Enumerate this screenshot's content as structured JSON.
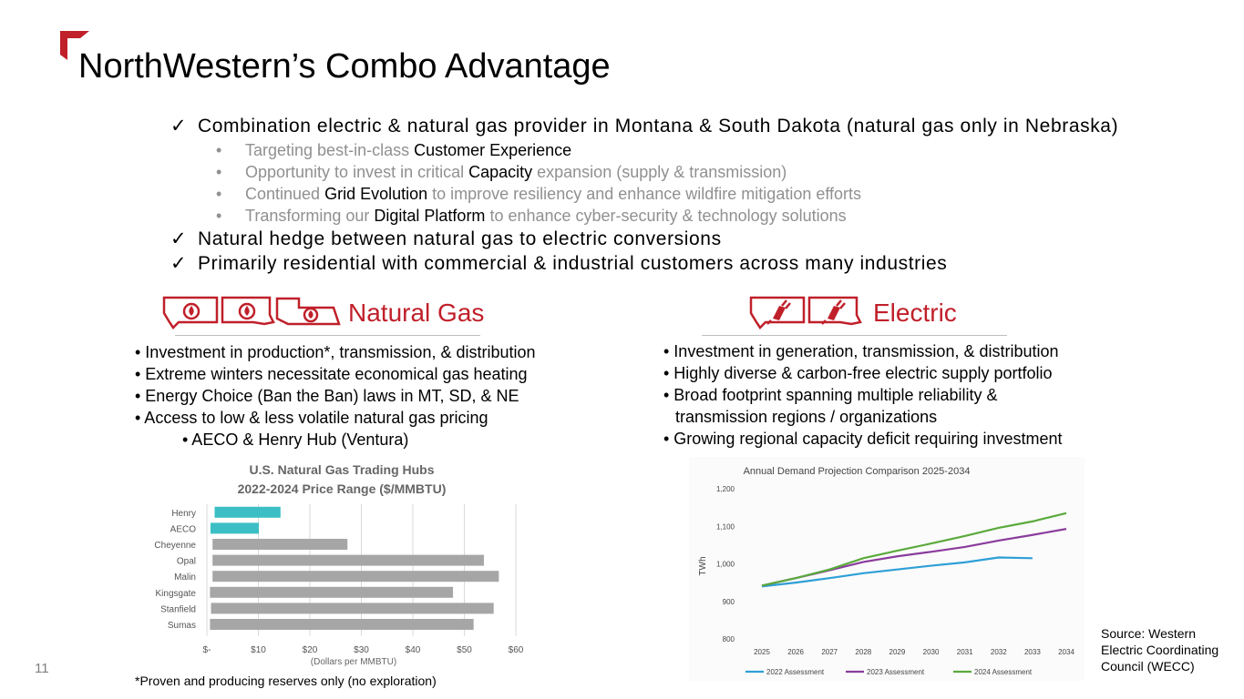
{
  "title": "NorthWestern’s Combo Advantage",
  "accent_color": "#c0202a",
  "page_number": "11",
  "checks": [
    {
      "mark": "✓",
      "text": "Combination electric & natural gas provider in Montana & South Dakota (natural gas only in Nebraska)"
    },
    {
      "mark": "✓",
      "text": "Natural hedge between natural gas to electric conversions"
    },
    {
      "mark": "✓",
      "text": "Primarily residential with commercial & industrial customers across many industries"
    }
  ],
  "subs": [
    {
      "pre": "Targeting best-in-class ",
      "hl": "Customer Experience",
      "post": ""
    },
    {
      "pre": "Opportunity to invest in critical ",
      "hl": "Capacity",
      "post": " expansion (supply & transmission)"
    },
    {
      "pre": "Continued ",
      "hl": "Grid Evolution",
      "post": " to improve resiliency and enhance wildfire mitigation efforts"
    },
    {
      "pre": "Transforming our ",
      "hl": "Digital Platform",
      "post": " to enhance cyber-security & technology solutions"
    }
  ],
  "gas": {
    "heading": "Natural Gas",
    "icons": [
      "gas-flame-montana-icon",
      "gas-flame-south-dakota-icon",
      "gas-flame-nebraska-icon"
    ],
    "bullets": [
      "• Investment in production*, transmission, & distribution",
      "• Extreme winters necessitate economical gas heating",
      "• Energy Choice (Ban the Ban) laws in MT, SD, & NE",
      "• Access to low & less volatile natural gas pricing",
      "• AECO & Henry Hub (Ventura)"
    ],
    "footnote": "*Proven and producing reserves only (no exploration)"
  },
  "electric": {
    "heading": "Electric",
    "icons": [
      "electric-plug-montana-icon",
      "electric-plug-south-dakota-icon"
    ],
    "bullets": [
      "• Investment in generation, transmission, & distribution",
      "• Highly diverse & carbon-free electric supply portfolio",
      "• Broad footprint spanning multiple reliability &",
      "transmission regions / organizations",
      "• Growing regional capacity deficit requiring investment"
    ],
    "source": "Source: Western Electric Coordinating Council (WECC)",
    "source_lines": [
      "Source: Western",
      "Electric Coordinating",
      "Council (WECC)"
    ]
  },
  "chart_data": [
    {
      "type": "bar",
      "orientation": "horizontal",
      "title": "U.S. Natural Gas Trading Hubs",
      "subtitle": "2022-2024 Price Range ($/MMBTU)",
      "xlabel": "(Dollars per MMBTU)",
      "categories": [
        "Henry",
        "AECO",
        "Cheyenne",
        "Opal",
        "Malin",
        "Kingsgate",
        "Stanfield",
        "Sumas"
      ],
      "ranges": [
        [
          1.5,
          14.3
        ],
        [
          0.7,
          10.1
        ],
        [
          1.1,
          27.3
        ],
        [
          1.1,
          53.8
        ],
        [
          1.1,
          56.7
        ],
        [
          0.6,
          47.8
        ],
        [
          0.8,
          55.7
        ],
        [
          0.6,
          51.8
        ]
      ],
      "colors": [
        "#3cbfc4",
        "#3cbfc4",
        "#a6a6a6",
        "#a6a6a6",
        "#a6a6a6",
        "#a6a6a6",
        "#a6a6a6",
        "#a6a6a6"
      ],
      "xlim": [
        0,
        60
      ],
      "xticks": [
        0,
        10,
        20,
        30,
        40,
        50,
        60
      ],
      "xtick_labels": [
        "$-",
        "$10",
        "$20",
        "$30",
        "$40",
        "$50",
        "$60"
      ],
      "grid": "vertical"
    },
    {
      "type": "line",
      "title": "Annual Demand Projection Comparison 2025-2034",
      "ylabel": "TWh",
      "x": [
        "2025",
        "2026",
        "2027",
        "2028",
        "2029",
        "2030",
        "2031",
        "2032",
        "2033",
        "2034"
      ],
      "ylim": [
        800,
        1200
      ],
      "yticks": [
        800,
        900,
        1000,
        1100,
        1200
      ],
      "ytick_labels": [
        "800",
        "900",
        "1,000",
        "1,100",
        "1,200"
      ],
      "series": [
        {
          "name": "2022 Assessment",
          "color": "#2e9fd6",
          "values": [
            940,
            950,
            962,
            975,
            985,
            995,
            1004,
            1017,
            1015,
            null
          ]
        },
        {
          "name": "2023 Assessment",
          "color": "#8a3c9c",
          "values": [
            942,
            962,
            983,
            1005,
            1020,
            1032,
            1045,
            1062,
            1077,
            1093
          ]
        },
        {
          "name": "2024 Assessment",
          "color": "#5aaa3c",
          "values": [
            942,
            962,
            985,
            1015,
            1035,
            1054,
            1074,
            1096,
            1113,
            1135
          ]
        }
      ],
      "legend": "bottom"
    }
  ]
}
